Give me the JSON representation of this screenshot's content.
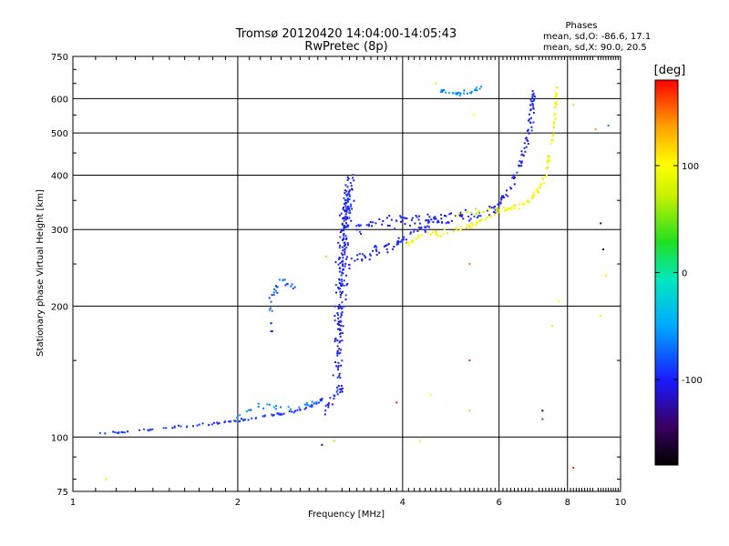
{
  "chart_data": {
    "type": "scatter",
    "title": "Tromsø 20120420 14:04:00-14:05:43",
    "subtitle": "RwPretec (8p)",
    "annotation": {
      "heading": "Phases",
      "line1": "mean, sd,O: -86.6, 17.1",
      "line2": "mean, sd,X:  90.0, 20.5"
    },
    "xlabel": "Frequency [MHz]",
    "ylabel": "Stationary phase Virtual Height [km]",
    "xscale": "log",
    "yscale": "log",
    "xlim": [
      1,
      10
    ],
    "ylim": [
      75,
      750
    ],
    "xticks": [
      {
        "v": 1,
        "label": "1"
      },
      {
        "v": 2,
        "label": "2"
      },
      {
        "v": 4,
        "label": "4"
      },
      {
        "v": 6,
        "label": "6"
      },
      {
        "v": 8,
        "label": "8"
      },
      {
        "v": 10,
        "label": "10"
      }
    ],
    "yticks": [
      {
        "v": 75,
        "label": "75"
      },
      {
        "v": 100,
        "label": "100"
      },
      {
        "v": 200,
        "label": "200"
      },
      {
        "v": 300,
        "label": "300"
      },
      {
        "v": 400,
        "label": "400"
      },
      {
        "v": 500,
        "label": "500"
      },
      {
        "v": 600,
        "label": "600"
      },
      {
        "v": 750,
        "label": "750"
      }
    ],
    "grid": true,
    "colorbar": {
      "label": "[deg]",
      "range": [
        -180,
        180
      ],
      "ticks": [
        {
          "v": 100,
          "label": "100"
        },
        {
          "v": 0,
          "label": "0"
        },
        {
          "v": -100,
          "label": "-100"
        }
      ]
    },
    "traces": [
      {
        "phase": -90,
        "spread": 0.012,
        "density": 14,
        "pts": [
          [
            1.1,
            102
          ],
          [
            1.3,
            103
          ],
          [
            1.6,
            106
          ],
          [
            1.9,
            108
          ],
          [
            2.1,
            110
          ],
          [
            2.4,
            113
          ],
          [
            2.7,
            117
          ],
          [
            2.85,
            122
          ]
        ]
      },
      {
        "phase": -60,
        "spread": 0.03,
        "density": 8,
        "pts": [
          [
            2.0,
            112
          ],
          [
            2.2,
            118
          ],
          [
            2.5,
            116
          ],
          [
            2.8,
            120
          ]
        ]
      },
      {
        "phase": -100,
        "spread": 0.05,
        "density": 12,
        "pts": [
          [
            2.9,
            115
          ],
          [
            3.0,
            125
          ],
          [
            3.1,
            130
          ]
        ]
      },
      {
        "phase": -100,
        "spread": 0.11,
        "density": 60,
        "pts": [
          [
            3.05,
            140
          ],
          [
            3.08,
            200
          ],
          [
            3.1,
            260
          ],
          [
            3.15,
            330
          ],
          [
            3.2,
            380
          ]
        ]
      },
      {
        "phase": -100,
        "spread": 0.05,
        "density": 16,
        "pts": [
          [
            3.2,
            250
          ],
          [
            3.5,
            265
          ],
          [
            3.8,
            275
          ],
          [
            4.1,
            290
          ],
          [
            4.5,
            310
          ],
          [
            5.0,
            320
          ],
          [
            5.5,
            325
          ],
          [
            6.0,
            335
          ]
        ]
      },
      {
        "phase": -100,
        "spread": 0.06,
        "density": 14,
        "pts": [
          [
            3.3,
            300
          ],
          [
            3.6,
            310
          ],
          [
            4.0,
            315
          ],
          [
            4.3,
            320
          ],
          [
            4.8,
            318
          ]
        ]
      },
      {
        "phase": -100,
        "spread": 0.05,
        "density": 16,
        "pts": [
          [
            6.0,
            345
          ],
          [
            6.3,
            380
          ],
          [
            6.6,
            430
          ],
          [
            6.8,
            500
          ],
          [
            6.9,
            570
          ],
          [
            6.95,
            640
          ]
        ]
      },
      {
        "phase": 100,
        "spread": 0.03,
        "density": 14,
        "pts": [
          [
            4.0,
            278
          ],
          [
            4.5,
            292
          ],
          [
            5.0,
            300
          ],
          [
            5.4,
            308
          ],
          [
            6.0,
            330
          ],
          [
            6.5,
            340
          ],
          [
            7.0,
            360
          ],
          [
            7.3,
            400
          ],
          [
            7.5,
            480
          ],
          [
            7.6,
            560
          ],
          [
            7.65,
            640
          ]
        ]
      },
      {
        "phase": 80,
        "spread": 0.03,
        "density": 8,
        "pts": [
          [
            5.0,
            325
          ],
          [
            5.5,
            330
          ],
          [
            6.0,
            335
          ]
        ]
      },
      {
        "phase": -80,
        "spread": 0.05,
        "density": 10,
        "pts": [
          [
            2.3,
            170
          ],
          [
            2.3,
            210
          ],
          [
            2.4,
            230
          ],
          [
            2.6,
            215
          ]
        ]
      },
      {
        "phase": -60,
        "spread": 0.02,
        "density": 10,
        "pts": [
          [
            4.7,
            625
          ],
          [
            5.0,
            615
          ],
          [
            5.3,
            620
          ],
          [
            5.6,
            640
          ]
        ]
      }
    ],
    "isolated": [
      {
        "f": 1.15,
        "h": 80,
        "phase": 110
      },
      {
        "f": 2.85,
        "h": 96,
        "phase": -150
      },
      {
        "f": 4.3,
        "h": 98,
        "phase": 90
      },
      {
        "f": 3.9,
        "h": 120,
        "phase": 170
      },
      {
        "f": 4.5,
        "h": 125,
        "phase": 100
      },
      {
        "f": 5.3,
        "h": 115,
        "phase": 120
      },
      {
        "f": 5.3,
        "h": 150,
        "phase": 170
      },
      {
        "f": 5.3,
        "h": 250,
        "phase": 150
      },
      {
        "f": 7.2,
        "h": 115,
        "phase": -160
      },
      {
        "f": 7.5,
        "h": 180,
        "phase": 110
      },
      {
        "f": 7.7,
        "h": 205,
        "phase": 100
      },
      {
        "f": 8.2,
        "h": 85,
        "phase": 170
      },
      {
        "f": 8.2,
        "h": 580,
        "phase": 120
      },
      {
        "f": 9.0,
        "h": 510,
        "phase": 140
      },
      {
        "f": 9.2,
        "h": 310,
        "phase": -150
      },
      {
        "f": 9.3,
        "h": 270,
        "phase": -170
      },
      {
        "f": 9.4,
        "h": 235,
        "phase": 110
      },
      {
        "f": 9.2,
        "h": 190,
        "phase": 90
      },
      {
        "f": 9.5,
        "h": 520,
        "phase": -60
      },
      {
        "f": 7.2,
        "h": 110,
        "phase": -80
      },
      {
        "f": 3.0,
        "h": 98,
        "phase": 120
      },
      {
        "f": 4.6,
        "h": 650,
        "phase": 110
      },
      {
        "f": 5.4,
        "h": 550,
        "phase": 100
      },
      {
        "f": 2.9,
        "h": 260,
        "phase": 120
      }
    ]
  }
}
